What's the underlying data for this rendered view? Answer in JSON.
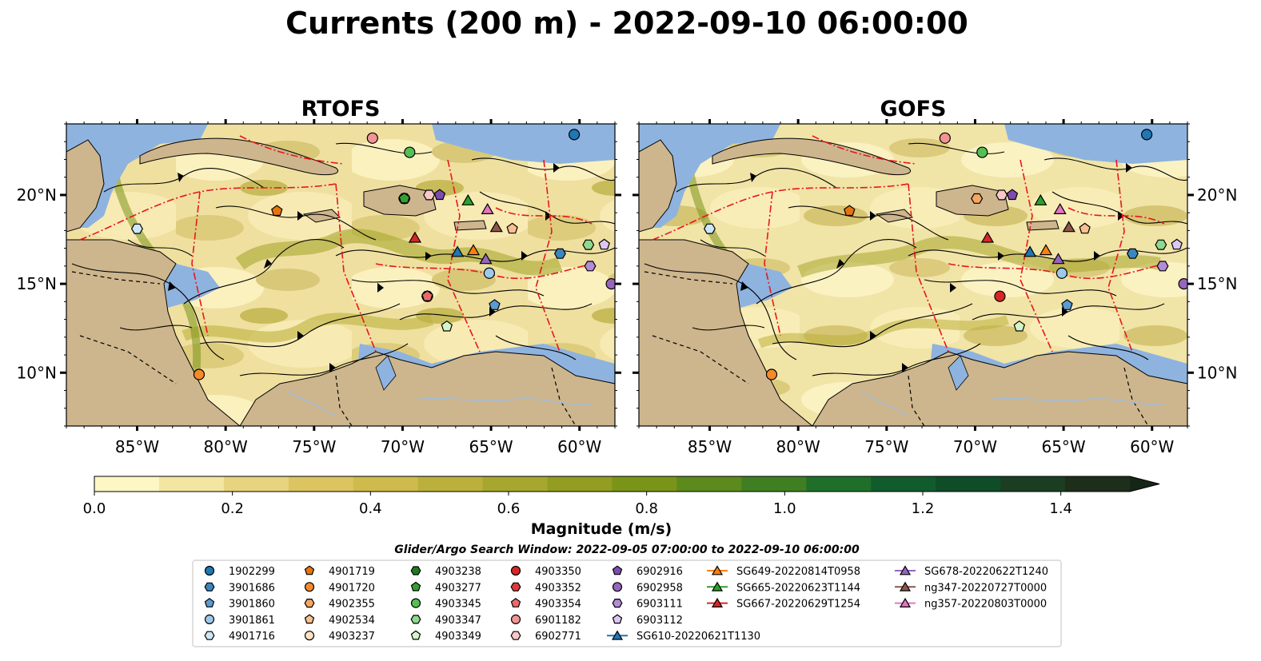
{
  "title": "Currents (200 m) - 2022-09-10 06:00:00",
  "panels": [
    {
      "id": "rtofs",
      "title": "RTOFS"
    },
    {
      "id": "gofs",
      "title": "GOFS"
    }
  ],
  "map_extent": {
    "lon": [
      -89,
      -58
    ],
    "lat": [
      7,
      24
    ]
  },
  "lon_ticks": [
    "85°W",
    "80°W",
    "75°W",
    "70°W",
    "65°W",
    "60°W"
  ],
  "lon_tick_values": [
    -85,
    -80,
    -75,
    -70,
    -65,
    -60
  ],
  "lat_ticks": [
    "20°N",
    "15°N",
    "10°N"
  ],
  "lat_tick_values": [
    20,
    15,
    10
  ],
  "colorbar": {
    "label": "Magnitude (m/s)",
    "ticks": [
      "0.0",
      "0.2",
      "0.4",
      "0.6",
      "0.8",
      "1.0",
      "1.2",
      "1.4"
    ],
    "tick_values": [
      0.0,
      0.2,
      0.4,
      0.6,
      0.8,
      1.0,
      1.2,
      1.4
    ],
    "range": [
      0,
      1.5
    ],
    "extend": "max",
    "colors": [
      "#fdf7c4",
      "#f3e6a1",
      "#e8d47f",
      "#dcc461",
      "#cfba4d",
      "#bcb03d",
      "#a7a62f",
      "#929d22",
      "#7a9419",
      "#5c8a1d",
      "#3f7f22",
      "#1f6f2b",
      "#115c2c",
      "#0f4c28",
      "#1b3e22",
      "#1d2e1a",
      "#162616"
    ]
  },
  "search_window": "Glider/Argo Search Window: 2022-09-05 07:00:00 to 2022-09-10 06:00:00",
  "map_colors": {
    "ocean_shallow": "#8eb3df",
    "land": "#cdb58d",
    "eez": "#e8161c",
    "coast": "#000000",
    "river": "#a4bcd6"
  },
  "legend": [
    {
      "label": "1902299",
      "marker": "circle",
      "color": "#1f77b4"
    },
    {
      "label": "3901686",
      "marker": "hexagon",
      "color": "#3a86c0"
    },
    {
      "label": "3901860",
      "marker": "pentagon",
      "color": "#5a9bd0"
    },
    {
      "label": "3901861",
      "marker": "circle",
      "color": "#9cc8ec"
    },
    {
      "label": "4901716",
      "marker": "hexagon",
      "color": "#cfe6f8"
    },
    {
      "label": "4901719",
      "marker": "pentagon",
      "color": "#e8740f"
    },
    {
      "label": "4901720",
      "marker": "circle",
      "color": "#f58a2a"
    },
    {
      "label": "4902355",
      "marker": "hexagon",
      "color": "#f6a660"
    },
    {
      "label": "4902534",
      "marker": "pentagon",
      "color": "#f8c08e"
    },
    {
      "label": "4903237",
      "marker": "circle",
      "color": "#fde3c6"
    },
    {
      "label": "4903238",
      "marker": "hexagon",
      "color": "#1e7a1e"
    },
    {
      "label": "4903277",
      "marker": "pentagon",
      "color": "#34a034"
    },
    {
      "label": "4903345",
      "marker": "circle",
      "color": "#54c054"
    },
    {
      "label": "4903347",
      "marker": "hexagon",
      "color": "#8ed98e"
    },
    {
      "label": "4903349",
      "marker": "pentagon",
      "color": "#d4f5c8"
    },
    {
      "label": "4903350",
      "marker": "circle",
      "color": "#d62728"
    },
    {
      "label": "4903352",
      "marker": "hexagon",
      "color": "#e0393a"
    },
    {
      "label": "4903354",
      "marker": "pentagon",
      "color": "#ea6a6a"
    },
    {
      "label": "6901182",
      "marker": "circle",
      "color": "#f29494"
    },
    {
      "label": "6902771",
      "marker": "hexagon",
      "color": "#f8c8c8"
    },
    {
      "label": "6902916",
      "marker": "pentagon",
      "color": "#7e4bb0"
    },
    {
      "label": "6902958",
      "marker": "circle",
      "color": "#9467bd"
    },
    {
      "label": "6903111",
      "marker": "hexagon",
      "color": "#b48bd8"
    },
    {
      "label": "6903112",
      "marker": "pentagon",
      "color": "#dcc7f2"
    },
    {
      "label": "SG610-20220621T1130",
      "marker": "triangle",
      "color": "#1f77b4",
      "line": true
    },
    {
      "label": "SG649-20220814T0958",
      "marker": "triangle",
      "color": "#ff7f0e",
      "line": true
    },
    {
      "label": "SG665-20220623T1144",
      "marker": "triangle",
      "color": "#2ca02c",
      "line": true
    },
    {
      "label": "SG667-20220629T1254",
      "marker": "triangle",
      "color": "#d62728",
      "line": true
    },
    {
      "label": "SG678-20220622T1240",
      "marker": "triangle",
      "color": "#9467bd",
      "line": true
    },
    {
      "label": "ng347-20220727T0000",
      "marker": "triangle",
      "color": "#8c564b",
      "line": true
    },
    {
      "label": "ng357-20220803T0000",
      "marker": "triangle",
      "color": "#e377c2",
      "line": true
    }
  ],
  "legend_columns": [
    5,
    5,
    5,
    5,
    5,
    3,
    3
  ],
  "platforms": {
    "rtofs": [
      {
        "id": "1902299",
        "lon": -60.3,
        "lat": 23.4
      },
      {
        "id": "3901686",
        "lon": -61.1,
        "lat": 16.7
      },
      {
        "id": "3901860",
        "lon": -64.8,
        "lat": 13.8
      },
      {
        "id": "3901861",
        "lon": -65.1,
        "lat": 15.6
      },
      {
        "id": "4901716",
        "lon": -85.0,
        "lat": 18.1
      },
      {
        "id": "4901719",
        "lon": -77.1,
        "lat": 19.1
      },
      {
        "id": "4901720",
        "lon": -81.5,
        "lat": 9.9
      },
      {
        "id": "4902355",
        "lon": -69.9,
        "lat": 19.8
      },
      {
        "id": "4902534",
        "lon": -63.8,
        "lat": 18.1
      },
      {
        "id": "4903237",
        "lon": -69.9,
        "lat": 19.8
      },
      {
        "id": "4903238",
        "lon": -69.9,
        "lat": 19.8
      },
      {
        "id": "4903277",
        "lon": -69.9,
        "lat": 19.8
      },
      {
        "id": "4903345",
        "lon": -69.6,
        "lat": 22.4
      },
      {
        "id": "4903347",
        "lon": -59.5,
        "lat": 17.2
      },
      {
        "id": "4903349",
        "lon": -67.5,
        "lat": 12.6
      },
      {
        "id": "4903350",
        "lon": -68.6,
        "lat": 14.3
      },
      {
        "id": "4903352",
        "lon": -68.6,
        "lat": 14.3
      },
      {
        "id": "4903354",
        "lon": -68.6,
        "lat": 14.3
      },
      {
        "id": "6901182",
        "lon": -71.7,
        "lat": 23.2
      },
      {
        "id": "6902771",
        "lon": -68.5,
        "lat": 20.0
      },
      {
        "id": "6902916",
        "lon": -67.9,
        "lat": 20.0
      },
      {
        "id": "6902958",
        "lon": -58.2,
        "lat": 15.0
      },
      {
        "id": "6903111",
        "lon": -59.4,
        "lat": 16.0
      },
      {
        "id": "6903112",
        "lon": -58.6,
        "lat": 17.2
      },
      {
        "id": "SG610-20220621T1130",
        "lon": -66.9,
        "lat": 16.8
      },
      {
        "id": "SG649-20220814T0958",
        "lon": -66.0,
        "lat": 16.9
      },
      {
        "id": "SG665-20220623T1144",
        "lon": -66.3,
        "lat": 19.7
      },
      {
        "id": "SG667-20220629T1254",
        "lon": -69.3,
        "lat": 17.6
      },
      {
        "id": "SG678-20220622T1240",
        "lon": -65.3,
        "lat": 16.4
      },
      {
        "id": "ng347-20220727T0000",
        "lon": -64.7,
        "lat": 18.2
      },
      {
        "id": "ng357-20220803T0000",
        "lon": -65.2,
        "lat": 19.2
      }
    ],
    "gofs": [
      {
        "id": "1902299",
        "lon": -60.3,
        "lat": 23.4
      },
      {
        "id": "3901686",
        "lon": -61.1,
        "lat": 16.7
      },
      {
        "id": "3901860",
        "lon": -64.8,
        "lat": 13.8
      },
      {
        "id": "3901861",
        "lon": -65.1,
        "lat": 15.6
      },
      {
        "id": "4901716",
        "lon": -85.0,
        "lat": 18.1
      },
      {
        "id": "4901719",
        "lon": -77.1,
        "lat": 19.1
      },
      {
        "id": "4901720",
        "lon": -81.5,
        "lat": 9.9
      },
      {
        "id": "4902355",
        "lon": -69.9,
        "lat": 19.8
      },
      {
        "id": "4902534",
        "lon": -63.8,
        "lat": 18.1
      },
      {
        "id": "4903345",
        "lon": -69.6,
        "lat": 22.4
      },
      {
        "id": "4903347",
        "lon": -59.5,
        "lat": 17.2
      },
      {
        "id": "4903349",
        "lon": -67.5,
        "lat": 12.6
      },
      {
        "id": "4903350",
        "lon": -68.6,
        "lat": 14.3
      },
      {
        "id": "6901182",
        "lon": -71.7,
        "lat": 23.2
      },
      {
        "id": "6902771",
        "lon": -68.5,
        "lat": 20.0
      },
      {
        "id": "6902916",
        "lon": -67.9,
        "lat": 20.0
      },
      {
        "id": "6902958",
        "lon": -58.2,
        "lat": 15.0
      },
      {
        "id": "6903111",
        "lon": -59.4,
        "lat": 16.0
      },
      {
        "id": "6903112",
        "lon": -58.6,
        "lat": 17.2
      },
      {
        "id": "SG610-20220621T1130",
        "lon": -66.9,
        "lat": 16.8
      },
      {
        "id": "SG649-20220814T0958",
        "lon": -66.0,
        "lat": 16.9
      },
      {
        "id": "SG665-20220623T1144",
        "lon": -66.3,
        "lat": 19.7
      },
      {
        "id": "SG667-20220629T1254",
        "lon": -69.3,
        "lat": 17.6
      },
      {
        "id": "SG678-20220622T1240",
        "lon": -65.3,
        "lat": 16.4
      },
      {
        "id": "ng347-20220727T0000",
        "lon": -64.7,
        "lat": 18.2
      },
      {
        "id": "ng357-20220803T0000",
        "lon": -65.2,
        "lat": 19.2
      }
    ]
  }
}
